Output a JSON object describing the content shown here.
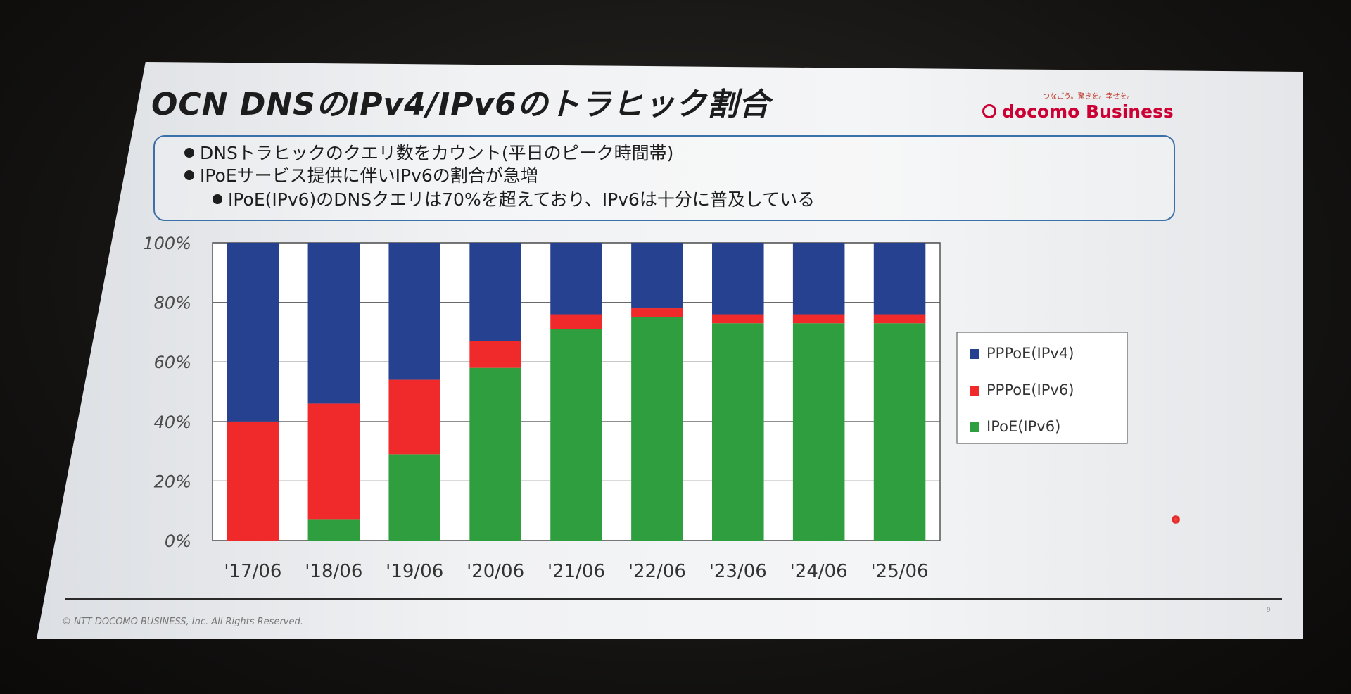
{
  "slide": {
    "title": "OCN DNSのIPv4/IPv6のトラヒック割合",
    "logo_tagline": "つなごう。驚きを。幸せを。",
    "logo_text": "docomo Business",
    "bullets": [
      "DNSトラヒックのクエリ数をカウント(平日のピーク時間帯)",
      "IPoEサービス提供に伴いIPv6の割合が急増",
      "IPoE(IPv6)のDNSクエリは70%を超えており、IPv6は十分に普及している"
    ],
    "copyright": "© NTT DOCOMO BUSINESS, Inc. All Rights Reserved.",
    "page_number": "9"
  },
  "chart_data": {
    "type": "bar",
    "stacked": true,
    "categories": [
      "'17/06",
      "'18/06",
      "'19/06",
      "'20/06",
      "'21/06",
      "'22/06",
      "'23/06",
      "'24/06",
      "'25/06"
    ],
    "series": [
      {
        "name": "IPoE(IPv6)",
        "color": "#2e9e3e",
        "values": [
          0,
          7,
          29,
          58,
          71,
          75,
          73,
          73,
          73
        ]
      },
      {
        "name": "PPPoE(IPv6)",
        "color": "#f02a2a",
        "values": [
          40,
          39,
          25,
          9,
          5,
          3,
          3,
          3,
          3
        ]
      },
      {
        "name": "PPPoE(IPv4)",
        "color": "#26418f",
        "values": [
          60,
          54,
          46,
          33,
          24,
          22,
          24,
          24,
          24
        ]
      }
    ],
    "legend_order": [
      "PPPoE(IPv4)",
      "PPPoE(IPv6)",
      "IPoE(IPv6)"
    ],
    "y_ticks": [
      "0%",
      "20%",
      "40%",
      "60%",
      "80%",
      "100%"
    ],
    "ylim": [
      0,
      100
    ],
    "grid": true,
    "legend_position": "right"
  }
}
